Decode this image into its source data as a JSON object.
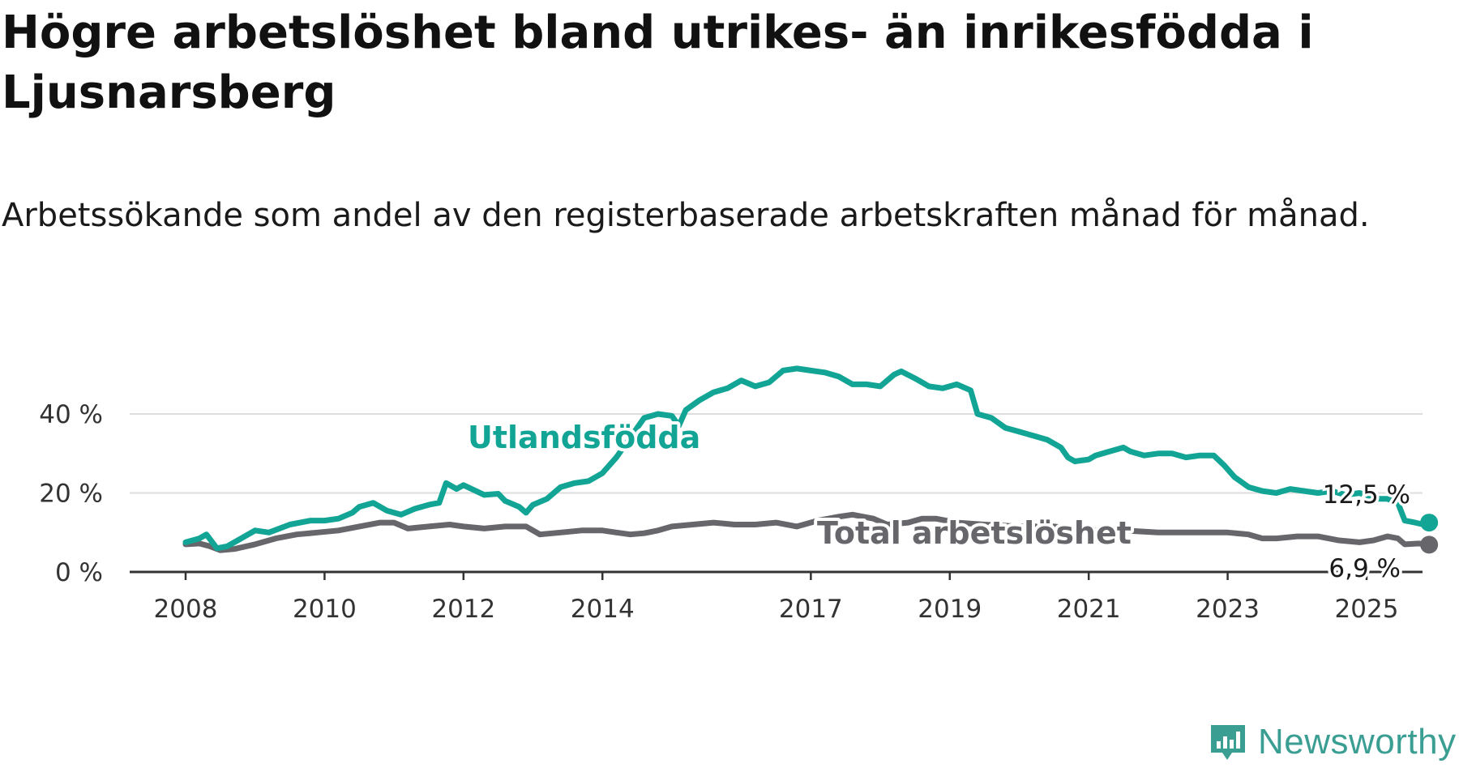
{
  "title": "Högre arbetslöshet bland utrikes- än inrikesfödda i Ljusnarsberg",
  "subtitle": "Arbetssökande som andel av den registerbaserade arbetskraften månad för månad.",
  "brand": {
    "name": "Newsworthy",
    "color": "#3a9e93",
    "icon": "bar-chart-speech-bubble-icon"
  },
  "chart_data": {
    "type": "line",
    "xlim": [
      2007.9,
      2025.9
    ],
    "ylim": [
      0,
      52
    ],
    "grid": true,
    "x_ticks": [
      {
        "value": 2008,
        "label": "2008"
      },
      {
        "value": 2010,
        "label": "2010"
      },
      {
        "value": 2012,
        "label": "2012"
      },
      {
        "value": 2014,
        "label": "2014"
      },
      {
        "value": 2017,
        "label": "2017"
      },
      {
        "value": 2019,
        "label": "2019"
      },
      {
        "value": 2021,
        "label": "2021"
      },
      {
        "value": 2023,
        "label": "2023"
      },
      {
        "value": 2025,
        "label": "2025"
      }
    ],
    "y_ticks": [
      {
        "value": 0,
        "label": "0 %"
      },
      {
        "value": 20,
        "label": "20 %"
      },
      {
        "value": 40,
        "label": "40 %"
      }
    ],
    "series": [
      {
        "name": "Utlandsfödda",
        "color": "#12a595",
        "end_label": "12,5 %",
        "points": [
          [
            2008.0,
            7.5
          ],
          [
            2008.2,
            8.5
          ],
          [
            2008.3,
            9.5
          ],
          [
            2008.45,
            6.0
          ],
          [
            2008.6,
            6.5
          ],
          [
            2008.8,
            8.5
          ],
          [
            2009.0,
            10.5
          ],
          [
            2009.2,
            10.0
          ],
          [
            2009.5,
            12.0
          ],
          [
            2009.8,
            13.0
          ],
          [
            2010.0,
            13.0
          ],
          [
            2010.2,
            13.5
          ],
          [
            2010.4,
            15.0
          ],
          [
            2010.5,
            16.5
          ],
          [
            2010.7,
            17.5
          ],
          [
            2010.9,
            15.5
          ],
          [
            2011.1,
            14.5
          ],
          [
            2011.3,
            16.0
          ],
          [
            2011.5,
            17.0
          ],
          [
            2011.65,
            17.5
          ],
          [
            2011.75,
            22.5
          ],
          [
            2011.9,
            21.0
          ],
          [
            2012.0,
            22.0
          ],
          [
            2012.3,
            19.5
          ],
          [
            2012.5,
            19.8
          ],
          [
            2012.6,
            18.0
          ],
          [
            2012.8,
            16.5
          ],
          [
            2012.9,
            15.0
          ],
          [
            2013.0,
            17.0
          ],
          [
            2013.2,
            18.5
          ],
          [
            2013.4,
            21.5
          ],
          [
            2013.6,
            22.5
          ],
          [
            2013.8,
            23.0
          ],
          [
            2014.0,
            25.0
          ],
          [
            2014.2,
            29.0
          ],
          [
            2014.4,
            34.0
          ],
          [
            2014.6,
            39.0
          ],
          [
            2014.8,
            40.0
          ],
          [
            2015.0,
            39.5
          ],
          [
            2015.1,
            37.0
          ],
          [
            2015.2,
            41.0
          ],
          [
            2015.4,
            43.5
          ],
          [
            2015.6,
            45.5
          ],
          [
            2015.8,
            46.5
          ],
          [
            2016.0,
            48.5
          ],
          [
            2016.2,
            47.0
          ],
          [
            2016.4,
            48.0
          ],
          [
            2016.6,
            51.0
          ],
          [
            2016.8,
            51.5
          ],
          [
            2017.0,
            51.0
          ],
          [
            2017.2,
            50.5
          ],
          [
            2017.4,
            49.5
          ],
          [
            2017.6,
            47.5
          ],
          [
            2017.8,
            47.5
          ],
          [
            2018.0,
            47.0
          ],
          [
            2018.2,
            50.0
          ],
          [
            2018.3,
            50.8
          ],
          [
            2018.5,
            49.0
          ],
          [
            2018.7,
            47.0
          ],
          [
            2018.9,
            46.5
          ],
          [
            2019.1,
            47.5
          ],
          [
            2019.3,
            46.0
          ],
          [
            2019.4,
            40.0
          ],
          [
            2019.6,
            39.0
          ],
          [
            2019.8,
            36.5
          ],
          [
            2020.0,
            35.5
          ],
          [
            2020.2,
            34.5
          ],
          [
            2020.4,
            33.5
          ],
          [
            2020.6,
            31.5
          ],
          [
            2020.7,
            29.0
          ],
          [
            2020.8,
            28.0
          ],
          [
            2021.0,
            28.5
          ],
          [
            2021.1,
            29.5
          ],
          [
            2021.3,
            30.5
          ],
          [
            2021.5,
            31.5
          ],
          [
            2021.6,
            30.5
          ],
          [
            2021.8,
            29.5
          ],
          [
            2022.0,
            30.0
          ],
          [
            2022.2,
            30.0
          ],
          [
            2022.4,
            29.0
          ],
          [
            2022.6,
            29.5
          ],
          [
            2022.8,
            29.5
          ],
          [
            2022.95,
            27.0
          ],
          [
            2023.1,
            24.0
          ],
          [
            2023.3,
            21.5
          ],
          [
            2023.5,
            20.5
          ],
          [
            2023.7,
            20.0
          ],
          [
            2023.9,
            21.0
          ],
          [
            2024.1,
            20.5
          ],
          [
            2024.3,
            20.0
          ],
          [
            2024.5,
            20.5
          ],
          [
            2024.7,
            19.5
          ],
          [
            2024.9,
            20.0
          ],
          [
            2025.1,
            18.5
          ],
          [
            2025.3,
            18.5
          ],
          [
            2025.45,
            17.5
          ],
          [
            2025.55,
            13.0
          ],
          [
            2025.7,
            12.5
          ],
          [
            2025.82,
            12.0
          ],
          [
            2025.9,
            12.5
          ]
        ]
      },
      {
        "name": "Total arbetslöshet",
        "color": "#66666b",
        "end_label": "6,9 %",
        "points": [
          [
            2008.0,
            7.0
          ],
          [
            2008.2,
            7.2
          ],
          [
            2008.35,
            6.5
          ],
          [
            2008.5,
            5.5
          ],
          [
            2008.7,
            5.8
          ],
          [
            2009.0,
            7.0
          ],
          [
            2009.3,
            8.5
          ],
          [
            2009.6,
            9.5
          ],
          [
            2009.9,
            10.0
          ],
          [
            2010.2,
            10.5
          ],
          [
            2010.5,
            11.5
          ],
          [
            2010.8,
            12.5
          ],
          [
            2011.0,
            12.5
          ],
          [
            2011.2,
            11.0
          ],
          [
            2011.5,
            11.5
          ],
          [
            2011.8,
            12.0
          ],
          [
            2012.0,
            11.5
          ],
          [
            2012.3,
            11.0
          ],
          [
            2012.6,
            11.5
          ],
          [
            2012.9,
            11.5
          ],
          [
            2013.1,
            9.5
          ],
          [
            2013.4,
            10.0
          ],
          [
            2013.7,
            10.5
          ],
          [
            2014.0,
            10.5
          ],
          [
            2014.2,
            10.0
          ],
          [
            2014.4,
            9.5
          ],
          [
            2014.6,
            9.8
          ],
          [
            2014.8,
            10.5
          ],
          [
            2015.0,
            11.5
          ],
          [
            2015.3,
            12.0
          ],
          [
            2015.6,
            12.5
          ],
          [
            2015.9,
            12.0
          ],
          [
            2016.2,
            12.0
          ],
          [
            2016.5,
            12.5
          ],
          [
            2016.8,
            11.5
          ],
          [
            2017.1,
            13.0
          ],
          [
            2017.4,
            14.0
          ],
          [
            2017.6,
            14.5
          ],
          [
            2017.9,
            13.5
          ],
          [
            2018.1,
            12.0
          ],
          [
            2018.4,
            12.5
          ],
          [
            2018.6,
            13.5
          ],
          [
            2018.8,
            13.5
          ],
          [
            2019.1,
            12.5
          ],
          [
            2019.5,
            12.0
          ],
          [
            2020.0,
            11.5
          ],
          [
            2020.5,
            11.5
          ],
          [
            2021.0,
            10.5
          ],
          [
            2021.5,
            10.5
          ],
          [
            2022.0,
            10.0
          ],
          [
            2022.5,
            10.0
          ],
          [
            2023.0,
            10.0
          ],
          [
            2023.3,
            9.5
          ],
          [
            2023.5,
            8.5
          ],
          [
            2023.7,
            8.5
          ],
          [
            2024.0,
            9.0
          ],
          [
            2024.3,
            9.0
          ],
          [
            2024.6,
            8.0
          ],
          [
            2024.9,
            7.5
          ],
          [
            2025.1,
            8.0
          ],
          [
            2025.3,
            9.0
          ],
          [
            2025.45,
            8.5
          ],
          [
            2025.55,
            7.0
          ],
          [
            2025.75,
            7.2
          ],
          [
            2025.9,
            6.9
          ]
        ]
      }
    ]
  }
}
